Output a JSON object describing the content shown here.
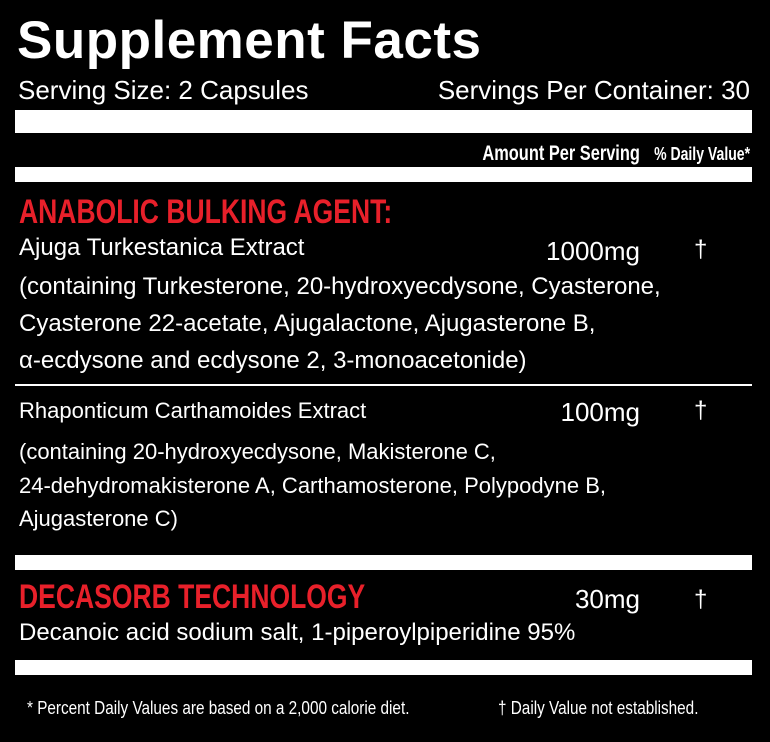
{
  "title": "Supplement Facts",
  "serving_size": "Serving Size: 2 Capsules",
  "servings_per_container": "Servings Per Container: 30",
  "header": {
    "amount": "Amount Per Serving",
    "dv": "% Daily Value*"
  },
  "colors": {
    "background": "#000000",
    "accent": "#e8202a",
    "text": "#ffffff"
  },
  "sections": [
    {
      "heading": "ANABOLIC BULKING AGENT:",
      "ingredients": [
        {
          "name": "Ajuga Turkestanica Extract",
          "amount": "1000mg",
          "dv": "†",
          "details": [
            "(containing Turkesterone, 20-hydroxyecdysone, Cyasterone,",
            "Cyasterone 22-acetate, Ajugalactone, Ajugasterone B,",
            "α-ecdysone and ecdysone 2, 3-monoacetonide)"
          ]
        },
        {
          "name": "Rhaponticum Carthamoides Extract",
          "amount": "100mg",
          "dv": "†",
          "details": [
            "(containing 20-hydroxyecdysone, Makisterone C,",
            "24-dehydromakisterone A, Carthamosterone, Polypodyne B,",
            "Ajugasterone C)"
          ]
        }
      ]
    },
    {
      "heading": "DECASORB TECHNOLOGY",
      "amount": "30mg",
      "dv": "†",
      "details": [
        "Decanoic acid sodium salt, 1-piperoylpiperidine 95%"
      ]
    }
  ],
  "footnotes": {
    "percent": "* Percent Daily Values are based on a 2,000 calorie diet.",
    "dagger": "† Daily Value not established."
  }
}
